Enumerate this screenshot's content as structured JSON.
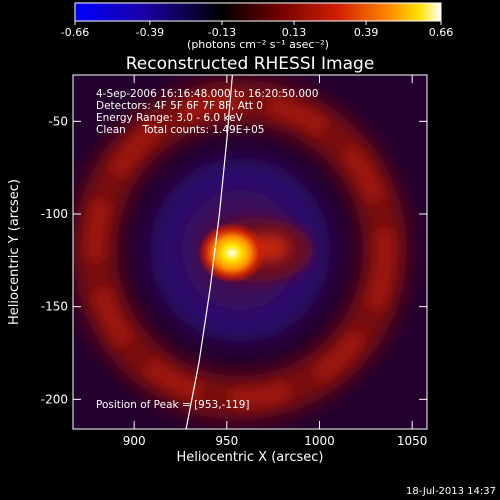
{
  "chart_data": {
    "type": "heatmap",
    "title": "Reconstructed RHESSI Image",
    "xlabel": "Heliocentric X (arcsec)",
    "ylabel": "Heliocentric Y (arcsec)",
    "xlim": [
      867,
      1058
    ],
    "ylim": [
      -216,
      -25
    ],
    "x_ticks": [
      900,
      950,
      1000,
      1050
    ],
    "y_ticks": [
      -50,
      -100,
      -150,
      -200
    ],
    "colorbar": {
      "min": -0.66,
      "max": 0.66,
      "tick_values": [
        -0.66,
        -0.39,
        -0.13,
        0.13,
        0.39,
        0.66
      ],
      "tick_labels": [
        "-0.66",
        "-0.39",
        "-0.13",
        "0.13",
        "0.39",
        "0.66"
      ],
      "units": "(photons cm⁻² s⁻¹ asec⁻²)",
      "colors": [
        "#0000ff",
        "#1a00aa",
        "#000000",
        "#6a0000",
        "#d42000",
        "#ff8c00",
        "#ffe000",
        "#ffffff"
      ]
    },
    "annotations": {
      "time": "4-Sep-2006 16:16:48.000 to 16:20:50.000",
      "detectors": "Detectors: 4F 5F 6F 7F 8F, Att 0",
      "energy": "Energy Range: 3.0 - 6.0 keV",
      "clean": "Clean     Total counts: 1.49E+05",
      "peak": "Position of Peak = [953,-119]"
    },
    "peak": {
      "x": 953,
      "y": -119,
      "value": 0.66
    },
    "limb_arc": [
      [
        928,
        -216
      ],
      [
        935,
        -180
      ],
      [
        941,
        -140
      ],
      [
        946,
        -100
      ],
      [
        950,
        -60
      ],
      [
        953,
        -25
      ]
    ],
    "footer": "18-Jul-2013 14:37"
  }
}
